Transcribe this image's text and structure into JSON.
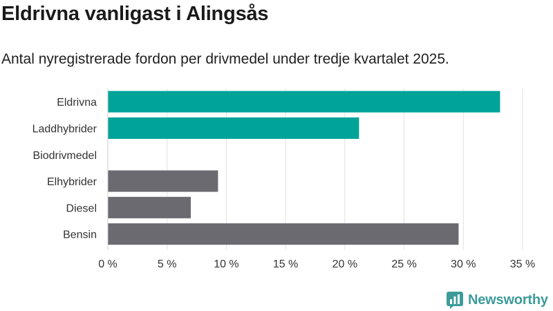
{
  "title": "Eldrivna vanligast i Alingsås",
  "subtitle": "Antal nyregistrerade fordon per drivmedel under tredje kvartalet 2025.",
  "brand": {
    "name": "Newsworthy",
    "color": "#3d9c9a"
  },
  "chart_data": {
    "type": "bar",
    "orientation": "horizontal",
    "categories": [
      "Eldrivna",
      "Laddhybrider",
      "Biodrivmedel",
      "Elhybrider",
      "Diesel",
      "Bensin"
    ],
    "values": [
      33.1,
      21.2,
      0,
      9.3,
      7.0,
      29.6
    ],
    "colors": [
      "#00a398",
      "#00a398",
      "#00a398",
      "#6b6a71",
      "#6b6a71",
      "#6b6a71"
    ],
    "xlim": [
      0,
      35
    ],
    "xticks": [
      0,
      5,
      10,
      15,
      20,
      25,
      30,
      35
    ],
    "tick_labels": [
      "0 %",
      "5 %",
      "10 %",
      "15 %",
      "20 %",
      "25 %",
      "30 %",
      "35 %"
    ],
    "grid": "vertical"
  }
}
